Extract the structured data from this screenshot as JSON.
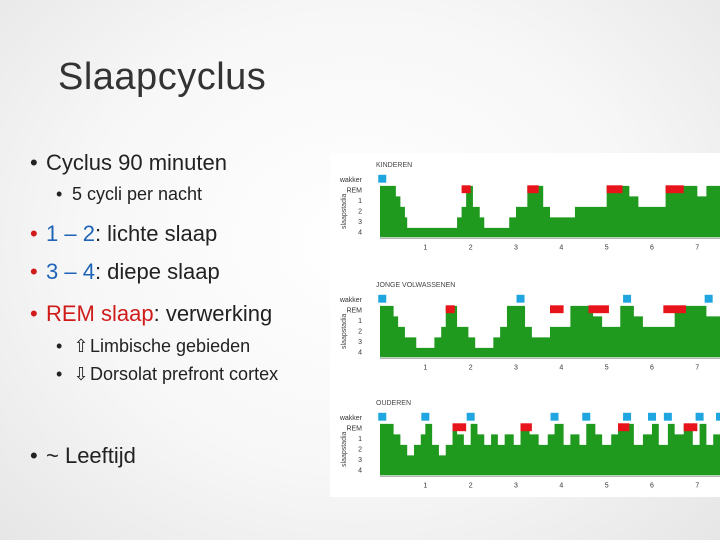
{
  "slide": {
    "title": "Slaapcyclus",
    "bullets": {
      "cyclus": "Cyclus 90 minuten",
      "cycli": "5 cycli per nacht",
      "lichte_num": "1 – 2",
      "lichte_text": ": lichte slaap",
      "diepe_num": "3 – 4",
      "diepe_text": ": diepe slaap",
      "rem_label": "REM slaap",
      "rem_text": ": verwerking",
      "limbisch": "Limbische gebieden",
      "dorsolat": "Dorsolat prefront cortex",
      "leeftijd": "~ Leeftijd"
    },
    "bullet_char": "•",
    "icons": [
      "arrow-up-icon",
      "arrow-down-icon"
    ],
    "colors": {
      "accent_red": "#d01b1b",
      "accent_blue": "#1e63b6",
      "sleep_green": "#1f9a1f",
      "rem_red": "#e8141b",
      "awake_blue": "#1fa6e0"
    }
  },
  "figure": {
    "stage_labels": [
      "wakker",
      "REM",
      "1",
      "2",
      "3",
      "4"
    ],
    "y_axis_label": "slaapstadia",
    "x_ticks": [
      "1",
      "2",
      "3",
      "4",
      "5",
      "6",
      "7"
    ],
    "panels": [
      {
        "title": "KINDEREN"
      },
      {
        "title": "JONGE VOLWASSENEN"
      },
      {
        "title": "OUDEREN"
      }
    ]
  },
  "chart_data": [
    {
      "type": "area",
      "title": "KINDEREN",
      "ylabel": "slaapstadia",
      "y_categories": [
        "wakker",
        "REM",
        "1",
        "2",
        "3",
        "4"
      ],
      "x_ticks": [
        1,
        2,
        3,
        4,
        5,
        6,
        7
      ],
      "xlim": [
        0,
        7.5
      ],
      "x": [
        0,
        0.25,
        0.35,
        0.45,
        0.55,
        0.6,
        0.75,
        0.85,
        1.2,
        1.5,
        1.7,
        1.8,
        1.9,
        2.0,
        2.05,
        2.2,
        2.3,
        2.45,
        2.7,
        2.85,
        3.0,
        3.1,
        3.25,
        3.4,
        3.6,
        3.75,
        3.9,
        4.1,
        4.3,
        4.5,
        4.8,
        5.0,
        5.1,
        5.2,
        5.5,
        5.7,
        5.9,
        6.1,
        6.3,
        6.5,
        6.8,
        7.0,
        7.2,
        7.5
      ],
      "stage": [
        0,
        0,
        2,
        3,
        4,
        5,
        5,
        5,
        5,
        5,
        4,
        3,
        1,
        1,
        3,
        4,
        5,
        5,
        5,
        4,
        3,
        3,
        1,
        1,
        3,
        4,
        4,
        4,
        3,
        3,
        3,
        1,
        1,
        1,
        2,
        3,
        3,
        3,
        1,
        1,
        1,
        2,
        1,
        1
      ],
      "rem_periods": [
        [
          1.8,
          2.0
        ],
        [
          3.25,
          3.5
        ],
        [
          5.0,
          5.35
        ],
        [
          6.3,
          6.7
        ]
      ],
      "awake_marks": [
        0.05
      ]
    },
    {
      "type": "area",
      "title": "JONGE VOLWASSENEN",
      "ylabel": "slaapstadia",
      "y_categories": [
        "wakker",
        "REM",
        "1",
        "2",
        "3",
        "4"
      ],
      "x_ticks": [
        1,
        2,
        3,
        4,
        5,
        6,
        7
      ],
      "xlim": [
        0,
        7.5
      ],
      "x": [
        0,
        0.2,
        0.3,
        0.4,
        0.55,
        0.8,
        1.0,
        1.2,
        1.35,
        1.45,
        1.55,
        1.7,
        1.95,
        2.1,
        2.3,
        2.5,
        2.65,
        2.8,
        3.0,
        3.2,
        3.35,
        3.5,
        3.75,
        4.0,
        4.2,
        4.3,
        4.5,
        4.7,
        4.9,
        5.1,
        5.3,
        5.45,
        5.6,
        5.8,
        6.0,
        6.2,
        6.5,
        6.8,
        7.0,
        7.2,
        7.5
      ],
      "stage": [
        0,
        0,
        2,
        3,
        4,
        5,
        5,
        4,
        3,
        1,
        1,
        3,
        4,
        5,
        5,
        4,
        3,
        1,
        0,
        3,
        4,
        4,
        3,
        3,
        1,
        1,
        1,
        2,
        3,
        3,
        1,
        0,
        2,
        3,
        3,
        3,
        1,
        1,
        1,
        2,
        1
      ],
      "rem_periods": [
        [
          1.45,
          1.65
        ],
        [
          3.75,
          4.05
        ],
        [
          4.6,
          5.05
        ],
        [
          6.25,
          6.75
        ]
      ],
      "awake_marks": [
        0.05,
        3.1,
        5.45,
        7.25
      ]
    },
    {
      "type": "area",
      "title": "OUDEREN",
      "ylabel": "slaapstadia",
      "y_categories": [
        "wakker",
        "REM",
        "1",
        "2",
        "3",
        "4"
      ],
      "x_ticks": [
        1,
        2,
        3,
        4,
        5,
        6,
        7
      ],
      "xlim": [
        0,
        7.5
      ],
      "x": [
        0,
        0.2,
        0.3,
        0.45,
        0.6,
        0.75,
        0.9,
        1.0,
        1.15,
        1.3,
        1.45,
        1.6,
        1.7,
        1.85,
        2.0,
        2.15,
        2.3,
        2.45,
        2.6,
        2.75,
        2.95,
        3.1,
        3.3,
        3.5,
        3.7,
        3.85,
        4.05,
        4.2,
        4.4,
        4.55,
        4.75,
        4.9,
        5.1,
        5.25,
        5.45,
        5.6,
        5.8,
        6.0,
        6.15,
        6.35,
        6.5,
        6.7,
        6.9,
        7.05,
        7.2,
        7.35,
        7.5
      ],
      "stage": [
        0,
        0,
        2,
        3,
        4,
        3,
        2,
        0,
        3,
        4,
        3,
        1,
        2,
        3,
        0,
        2,
        3,
        2,
        3,
        2,
        3,
        1,
        2,
        3,
        2,
        0,
        3,
        2,
        3,
        0,
        2,
        3,
        2,
        1,
        0,
        3,
        2,
        0,
        3,
        0,
        2,
        1,
        3,
        0,
        3,
        2,
        0
      ],
      "rem_periods": [
        [
          1.6,
          1.9
        ],
        [
          3.1,
          3.35
        ],
        [
          5.25,
          5.5
        ],
        [
          6.7,
          7.0
        ]
      ],
      "awake_marks": [
        0.05,
        1.0,
        2.0,
        3.85,
        4.55,
        5.45,
        6.0,
        6.35,
        7.05,
        7.5
      ]
    }
  ]
}
